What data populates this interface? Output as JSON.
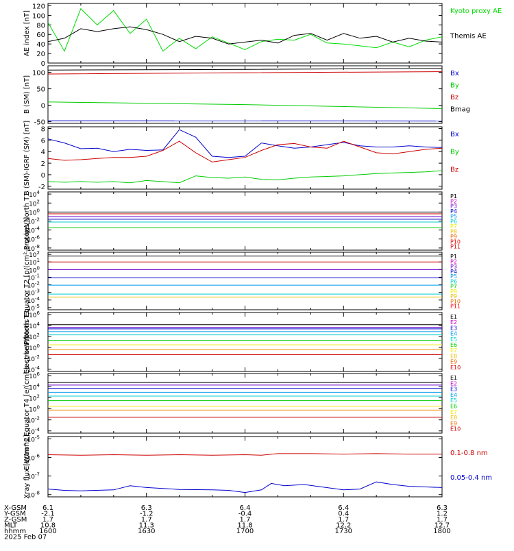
{
  "chart_data": [
    {
      "type": "line",
      "ylabel": "AE index [nT]",
      "yticks": [
        "0",
        "20",
        "40",
        "60",
        "80",
        "100",
        "120"
      ],
      "ylim": [
        0,
        125
      ],
      "series": [
        {
          "name": "Kyoto proxy AE",
          "color": "#00dd00",
          "x": [
            1600,
            1605,
            1610,
            1615,
            1620,
            1625,
            1630,
            1635,
            1640,
            1645,
            1650,
            1655,
            1700,
            1705,
            1710,
            1715,
            1720,
            1725,
            1730,
            1735,
            1740,
            1745,
            1750,
            1755,
            1800
          ],
          "y": [
            85,
            25,
            114,
            80,
            110,
            62,
            92,
            25,
            52,
            30,
            55,
            42,
            28,
            45,
            50,
            48,
            60,
            42,
            40,
            36,
            32,
            44,
            34,
            48,
            55
          ]
        },
        {
          "name": "Themis AE",
          "color": "#000000",
          "x": [
            1600,
            1605,
            1610,
            1615,
            1620,
            1625,
            1630,
            1635,
            1640,
            1645,
            1650,
            1655,
            1700,
            1705,
            1710,
            1715,
            1720,
            1725,
            1730,
            1735,
            1740,
            1745,
            1750,
            1755,
            1800
          ],
          "y": [
            45,
            52,
            72,
            66,
            72,
            76,
            70,
            60,
            45,
            56,
            52,
            40,
            44,
            48,
            42,
            58,
            62,
            48,
            62,
            52,
            56,
            44,
            52,
            46,
            44
          ]
        }
      ]
    },
    {
      "type": "line",
      "ylabel": "B (SM) [nT]",
      "yticks": [
        "-50",
        "0",
        "50",
        "100"
      ],
      "ylim": [
        -55,
        120
      ],
      "series": [
        {
          "name": "Bx",
          "color": "#0000cc",
          "x": [
            1600,
            1800
          ],
          "y": [
            -47,
            -48
          ]
        },
        {
          "name": "By",
          "color": "#00cc00",
          "x": [
            1600,
            1700,
            1800
          ],
          "y": [
            10,
            2,
            -10
          ]
        },
        {
          "name": "Bz",
          "color": "#cc0000",
          "x": [
            1600,
            1700,
            1800
          ],
          "y": [
            95,
            99,
            102
          ]
        },
        {
          "name": "Bmag",
          "color": "#000000",
          "x": [
            1600,
            1700,
            1800
          ],
          "y": [
            107,
            109,
            112
          ]
        }
      ]
    },
    {
      "type": "line",
      "ylabel": "B (SM)-IGRF (SM) [nT]",
      "yticks": [
        "-2",
        "0",
        "2",
        "4",
        "6",
        "8"
      ],
      "ylim": [
        -2.5,
        8.3
      ],
      "series": [
        {
          "name": "Bx",
          "color": "#0000cc",
          "x": [
            1600,
            1605,
            1610,
            1615,
            1620,
            1625,
            1630,
            1635,
            1640,
            1645,
            1650,
            1655,
            1700,
            1705,
            1710,
            1715,
            1720,
            1725,
            1730,
            1735,
            1740,
            1745,
            1750,
            1755,
            1800
          ],
          "y": [
            6.2,
            5.5,
            4.5,
            4.6,
            4.0,
            4.4,
            4.2,
            4.3,
            7.8,
            6.5,
            3.2,
            3.0,
            3.2,
            5.5,
            5.0,
            4.6,
            4.8,
            5.2,
            5.6,
            5.0,
            4.8,
            4.8,
            5.0,
            4.8,
            4.7
          ]
        },
        {
          "name": "By",
          "color": "#00cc00",
          "x": [
            1600,
            1605,
            1610,
            1615,
            1620,
            1625,
            1630,
            1635,
            1640,
            1645,
            1650,
            1655,
            1700,
            1705,
            1710,
            1715,
            1720,
            1725,
            1730,
            1735,
            1740,
            1745,
            1750,
            1755,
            1800
          ],
          "y": [
            -1.2,
            -1.3,
            -1.2,
            -1.3,
            -1.2,
            -1.4,
            -1.0,
            -1.2,
            -1.4,
            -0.2,
            -0.5,
            -0.6,
            -0.4,
            -0.8,
            -0.9,
            -0.6,
            -0.4,
            -0.3,
            -0.2,
            0.0,
            0.2,
            0.3,
            0.4,
            0.5,
            0.7
          ]
        },
        {
          "name": "Bz",
          "color": "#cc0000",
          "x": [
            1600,
            1605,
            1610,
            1615,
            1620,
            1625,
            1630,
            1635,
            1640,
            1645,
            1650,
            1655,
            1700,
            1705,
            1710,
            1715,
            1720,
            1725,
            1730,
            1735,
            1740,
            1745,
            1750,
            1755,
            1800
          ],
          "y": [
            2.8,
            2.5,
            2.6,
            2.8,
            3.0,
            3.0,
            3.2,
            4.2,
            5.8,
            3.8,
            2.2,
            2.6,
            3.0,
            4.2,
            5.2,
            5.4,
            4.8,
            4.6,
            5.8,
            4.8,
            3.8,
            3.6,
            4.0,
            4.4,
            4.6
          ]
        }
      ]
    },
    {
      "type": "line",
      "ylabel": "Protons North T1",
      "log_scale": true,
      "yticks": [
        "10^-8",
        "10^-6",
        "10^-4",
        "10^-2",
        "10^0",
        "10^2",
        "10^4"
      ],
      "legend": [
        "P1",
        "P2",
        "P3",
        "P4",
        "P5",
        "P6",
        "P7",
        "P8",
        "P9",
        "P10",
        "P11"
      ],
      "colors": [
        "#000000",
        "#cc00cc",
        "#6a00cc",
        "#0000cc",
        "#0099ee",
        "#00cccc",
        "#eeee00",
        "#eebb00",
        "#ee6600",
        "#ee0000",
        "#cc0000"
      ],
      "levels": [
        1,
        0.4,
        0.1,
        0.025,
        0.006,
        0.0003
      ],
      "level_colors": [
        "#000000",
        "#cc0000",
        "#6a00cc",
        "#0000cc",
        "#00cccc",
        "#00cc00"
      ]
    },
    {
      "type": "line",
      "ylabel": "Protons Equator T2 [p/(cm²-s-sr-keV)]",
      "log_scale": true,
      "yticks": [
        "10^-5",
        "10^-4",
        "10^-3",
        "10^-2",
        "10^-1",
        "10^0",
        "10^1",
        "10^2"
      ],
      "legend": [
        "P1",
        "P2",
        "P3",
        "P4",
        "P5",
        "P6",
        "P7",
        "P8",
        "P9",
        "P10",
        "P11"
      ],
      "colors": [
        "#000000",
        "#cc00cc",
        "#6a00cc",
        "#0000cc",
        "#0099ee",
        "#00cccc",
        "#00cc00",
        "#eeee00",
        "#eebb00",
        "#ee6600",
        "#ee0000"
      ],
      "levels": [
        60,
        10,
        1,
        0.08,
        0.009,
        0.0006,
        0.00025
      ],
      "level_colors": [
        "#000000",
        "#cc0000",
        "#6a00cc",
        "#0000cc",
        "#0099ee",
        "#00cccc",
        "#eebb00"
      ]
    },
    {
      "type": "line",
      "ylabel": "Electrons North T3",
      "log_scale": true,
      "yticks": [
        "10^-4",
        "10^-2",
        "10^0",
        "10^2",
        "10^4",
        "10^6"
      ],
      "legend": [
        "E1",
        "E2",
        "E3",
        "E4",
        "E5",
        "E6",
        "E7",
        "E8",
        "E9",
        "E10"
      ],
      "colors": [
        "#000000",
        "#cc00cc",
        "#0000cc",
        "#0099ee",
        "#00cccc",
        "#00cc00",
        "#eeee00",
        "#eebb00",
        "#ee6600",
        "#cc0000"
      ],
      "levels": [
        15000,
        5000,
        2500,
        800,
        200,
        20,
        3,
        0.4,
        0.05
      ],
      "level_colors": [
        "#000000",
        "#6a00cc",
        "#0000cc",
        "#0099ee",
        "#00cccc",
        "#00cc00",
        "#eeee00",
        "#ee8800",
        "#cc0000"
      ]
    },
    {
      "type": "line",
      "ylabel": "Electrons Equator T4 [e/(cm²-s-sr-keV)]",
      "log_scale": true,
      "yticks": [
        "10^-4",
        "10^-2",
        "10^0",
        "10^2",
        "10^4",
        "10^6"
      ],
      "legend": [
        "E1",
        "E2",
        "E3",
        "E4",
        "E5",
        "E6",
        "E7",
        "E8",
        "E9",
        "E10"
      ],
      "colors": [
        "#000000",
        "#cc00cc",
        "#0000cc",
        "#0099ee",
        "#00cccc",
        "#00cc00",
        "#eeee00",
        "#eebb00",
        "#ee6600",
        "#cc0000"
      ],
      "levels": [
        60000,
        20000,
        5000,
        1000,
        200,
        30,
        3,
        0.6,
        0.03
      ],
      "level_colors": [
        "#000000",
        "#6a00cc",
        "#0000cc",
        "#0099ee",
        "#00cccc",
        "#00cc00",
        "#eeee00",
        "#ee8800",
        "#cc0000"
      ]
    },
    {
      "type": "line",
      "ylabel": "Xray flux [W/m^2]",
      "log_scale": true,
      "yticks": [
        "10^-8",
        "10^-7",
        "10^-6",
        "10^-5"
      ],
      "legend": [
        "0.1-0.8 nm",
        "0.05-0.4 nm"
      ],
      "colors": [
        "#cc0000",
        "#0000cc"
      ],
      "series": [
        {
          "name": "0.1-0.8 nm",
          "color": "#cc0000",
          "x": [
            1600,
            1610,
            1620,
            1630,
            1640,
            1650,
            1700,
            1705,
            1710,
            1720,
            1730,
            1740,
            1750,
            1800
          ],
          "y": [
            1.4e-06,
            1.3e-06,
            1.4e-06,
            1.3e-06,
            1.4e-06,
            1.3e-06,
            1.4e-06,
            1.3e-06,
            1.6e-06,
            1.6e-06,
            1.5e-06,
            1.6e-06,
            1.5e-06,
            1.5e-06
          ]
        },
        {
          "name": "0.05-0.4 nm",
          "color": "#0000cc",
          "x": [
            1600,
            1605,
            1610,
            1620,
            1625,
            1630,
            1640,
            1650,
            1655,
            1700,
            1705,
            1708,
            1712,
            1718,
            1722,
            1730,
            1735,
            1740,
            1745,
            1750,
            1755,
            1800
          ],
          "y": [
            2e-08,
            1.7e-08,
            1.6e-08,
            1.8e-08,
            3e-08,
            2.4e-08,
            1.9e-08,
            1.8e-08,
            1.7e-08,
            1.3e-08,
            1.8e-08,
            4e-08,
            3e-08,
            3.5e-08,
            2.8e-08,
            1.8e-08,
            2e-08,
            4.8e-08,
            3.5e-08,
            2.8e-08,
            2.6e-08,
            2.4e-08
          ]
        }
      ]
    }
  ],
  "axis_rows": [
    {
      "label": "X-GSM",
      "values": [
        "6.1",
        "6.3",
        "6.4",
        "6.4",
        "6.3"
      ]
    },
    {
      "label": "Y-GSM",
      "values": [
        "-2.1",
        "-1.2",
        "-0.4",
        "0.4",
        "1.2"
      ]
    },
    {
      "label": "Z-GSM",
      "values": [
        "1.7",
        "1.7",
        "1.7",
        "1.7",
        "1.7"
      ]
    },
    {
      "label": "MLT",
      "values": [
        "10.8",
        "11.3",
        "11.8",
        "12.2",
        "12.7"
      ]
    },
    {
      "label": "hhmm",
      "values": [
        "1600",
        "1630",
        "1700",
        "1730",
        "1800"
      ]
    }
  ],
  "date_label": "2025 Feb 07"
}
